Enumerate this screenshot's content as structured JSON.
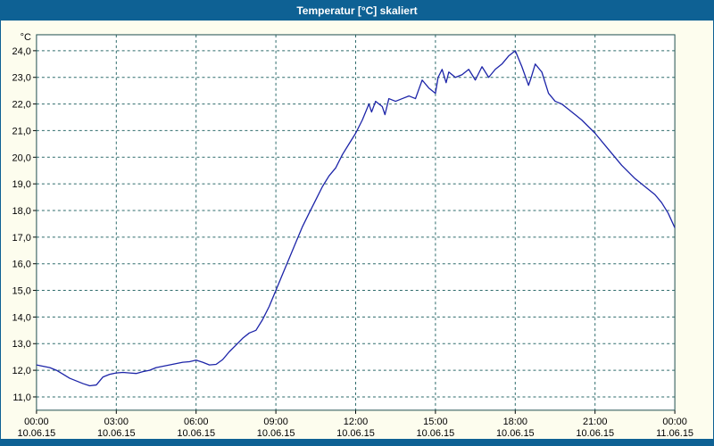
{
  "window": {
    "title": "Temperatur [°C] skaliert"
  },
  "colors": {
    "titlebar": "#0e6194",
    "window_bg": "#fdfdee",
    "plot_bg": "#ffffff",
    "grid": "#2e6b6b",
    "plot_border": "#1f4f4f",
    "line": "#1c24a8",
    "title_text": "#ffffff"
  },
  "chart_data": {
    "type": "line",
    "title": "Temperatur [°C] skaliert",
    "ylabel": "°C",
    "xlabel": "",
    "grid": "dashed",
    "legend": "none",
    "xlim": [
      0,
      24
    ],
    "ylim": [
      10.5,
      24.6
    ],
    "y_ticks": [
      11,
      12,
      13,
      14,
      15,
      16,
      17,
      18,
      19,
      20,
      21,
      22,
      23,
      24
    ],
    "y_tick_labels": [
      "11,0",
      "12,0",
      "13,0",
      "14,0",
      "15,0",
      "16,0",
      "17,0",
      "18,0",
      "19,0",
      "20,0",
      "21,0",
      "22,0",
      "23,0",
      "24,0"
    ],
    "x_ticks": [
      {
        "hour": 0,
        "time": "00:00",
        "date": "10.06.15"
      },
      {
        "hour": 3,
        "time": "03:00",
        "date": "10.06.15"
      },
      {
        "hour": 6,
        "time": "06:00",
        "date": "10.06.15"
      },
      {
        "hour": 9,
        "time": "09:00",
        "date": "10.06.15"
      },
      {
        "hour": 12,
        "time": "12:00",
        "date": "10.06.15"
      },
      {
        "hour": 15,
        "time": "15:00",
        "date": "10.06.15"
      },
      {
        "hour": 18,
        "time": "18:00",
        "date": "10.06.15"
      },
      {
        "hour": 21,
        "time": "21:00",
        "date": "10.06.15"
      },
      {
        "hour": 24,
        "time": "00:00",
        "date": "11.06.15"
      }
    ],
    "series": [
      {
        "name": "Temperatur [°C]",
        "color": "#1c24a8",
        "points": [
          [
            0.0,
            12.2
          ],
          [
            0.25,
            12.15
          ],
          [
            0.5,
            12.1
          ],
          [
            0.75,
            12.0
          ],
          [
            1.0,
            11.85
          ],
          [
            1.25,
            11.7
          ],
          [
            1.5,
            11.6
          ],
          [
            1.75,
            11.5
          ],
          [
            2.0,
            11.42
          ],
          [
            2.25,
            11.45
          ],
          [
            2.5,
            11.75
          ],
          [
            2.75,
            11.85
          ],
          [
            3.0,
            11.9
          ],
          [
            3.25,
            11.92
          ],
          [
            3.5,
            11.9
          ],
          [
            3.75,
            11.88
          ],
          [
            4.0,
            11.95
          ],
          [
            4.25,
            12.0
          ],
          [
            4.5,
            12.1
          ],
          [
            4.75,
            12.15
          ],
          [
            5.0,
            12.2
          ],
          [
            5.25,
            12.25
          ],
          [
            5.5,
            12.3
          ],
          [
            5.75,
            12.32
          ],
          [
            6.0,
            12.38
          ],
          [
            6.25,
            12.3
          ],
          [
            6.5,
            12.2
          ],
          [
            6.75,
            12.22
          ],
          [
            7.0,
            12.4
          ],
          [
            7.25,
            12.7
          ],
          [
            7.5,
            12.95
          ],
          [
            7.75,
            13.2
          ],
          [
            8.0,
            13.4
          ],
          [
            8.25,
            13.5
          ],
          [
            8.5,
            13.9
          ],
          [
            8.75,
            14.4
          ],
          [
            9.0,
            15.0
          ],
          [
            9.25,
            15.6
          ],
          [
            9.5,
            16.2
          ],
          [
            9.75,
            16.8
          ],
          [
            10.0,
            17.4
          ],
          [
            10.25,
            17.9
          ],
          [
            10.5,
            18.4
          ],
          [
            10.75,
            18.9
          ],
          [
            11.0,
            19.3
          ],
          [
            11.25,
            19.6
          ],
          [
            11.5,
            20.1
          ],
          [
            11.75,
            20.5
          ],
          [
            12.0,
            20.9
          ],
          [
            12.25,
            21.4
          ],
          [
            12.5,
            22.0
          ],
          [
            12.6,
            21.7
          ],
          [
            12.75,
            22.1
          ],
          [
            13.0,
            21.9
          ],
          [
            13.1,
            21.6
          ],
          [
            13.25,
            22.2
          ],
          [
            13.5,
            22.1
          ],
          [
            13.75,
            22.2
          ],
          [
            14.0,
            22.3
          ],
          [
            14.25,
            22.2
          ],
          [
            14.5,
            22.9
          ],
          [
            14.75,
            22.6
          ],
          [
            15.0,
            22.4
          ],
          [
            15.1,
            23.0
          ],
          [
            15.25,
            23.3
          ],
          [
            15.4,
            22.8
          ],
          [
            15.5,
            23.2
          ],
          [
            15.75,
            23.0
          ],
          [
            16.0,
            23.1
          ],
          [
            16.25,
            23.3
          ],
          [
            16.5,
            22.9
          ],
          [
            16.75,
            23.4
          ],
          [
            17.0,
            23.0
          ],
          [
            17.25,
            23.3
          ],
          [
            17.5,
            23.5
          ],
          [
            17.75,
            23.8
          ],
          [
            18.0,
            24.0
          ],
          [
            18.25,
            23.4
          ],
          [
            18.5,
            22.7
          ],
          [
            18.6,
            23.0
          ],
          [
            18.75,
            23.5
          ],
          [
            19.0,
            23.2
          ],
          [
            19.25,
            22.4
          ],
          [
            19.5,
            22.1
          ],
          [
            19.75,
            22.0
          ],
          [
            20.0,
            21.8
          ],
          [
            20.25,
            21.6
          ],
          [
            20.5,
            21.4
          ],
          [
            21.0,
            20.9
          ],
          [
            21.5,
            20.3
          ],
          [
            22.0,
            19.7
          ],
          [
            22.5,
            19.2
          ],
          [
            23.0,
            18.8
          ],
          [
            23.25,
            18.6
          ],
          [
            23.5,
            18.3
          ],
          [
            23.75,
            17.9
          ],
          [
            24.0,
            17.35
          ]
        ]
      }
    ]
  }
}
